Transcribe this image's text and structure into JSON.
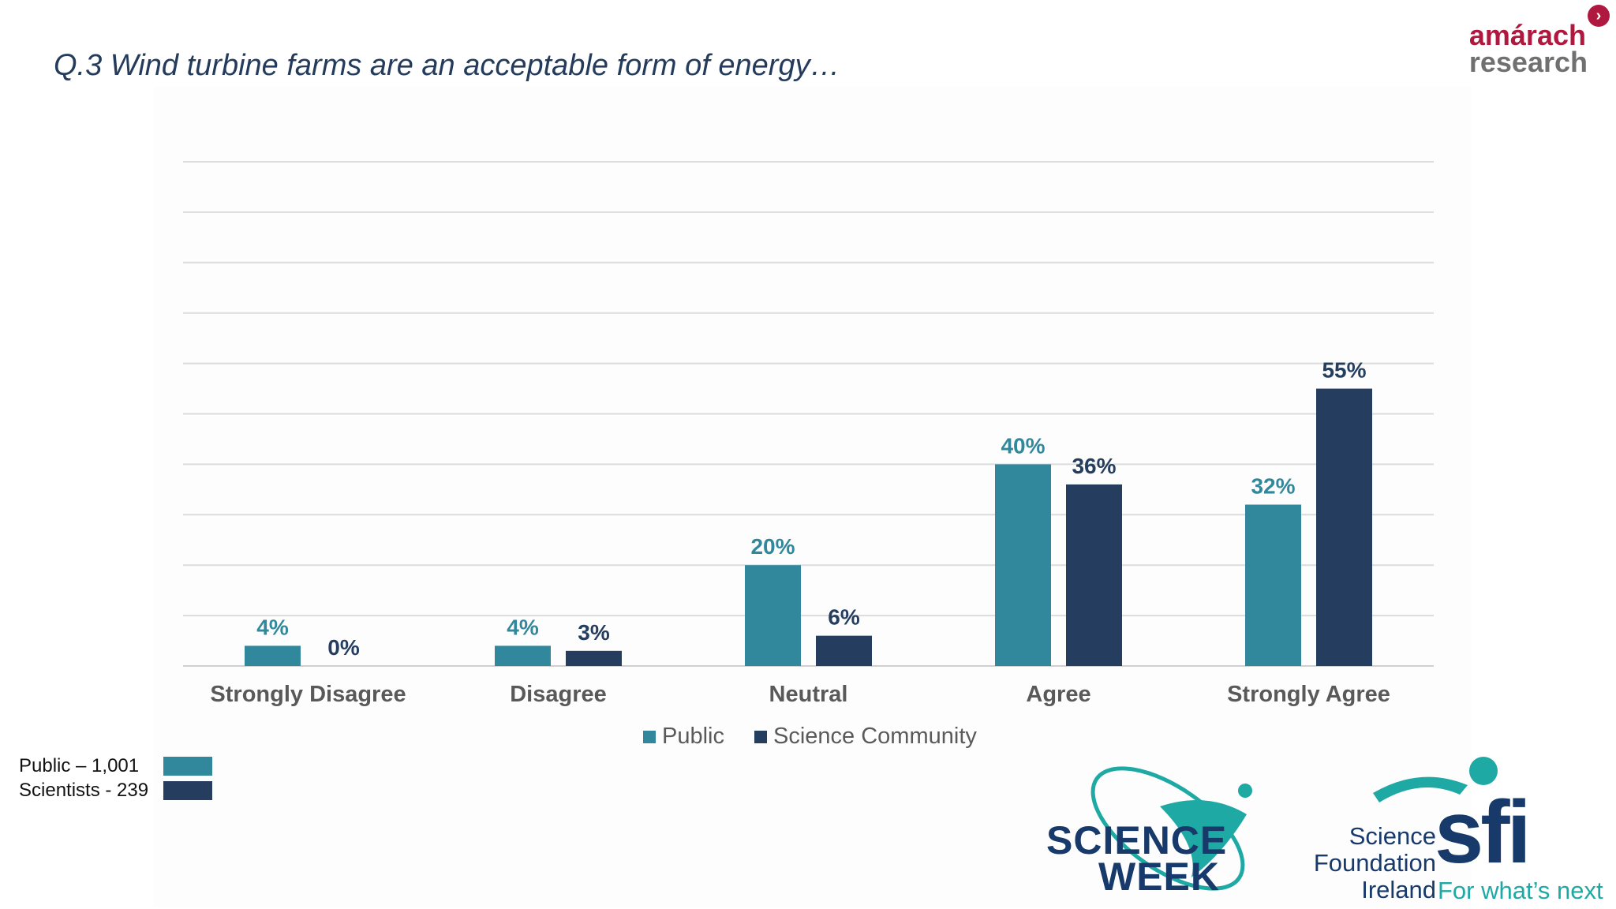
{
  "title": "Q.3 Wind turbine farms are an acceptable form of energy…",
  "colors": {
    "public": "#31879c",
    "science": "#253d5e",
    "grid": "#dcdcdc"
  },
  "chart_data": {
    "type": "bar",
    "title": "",
    "xlabel": "",
    "ylabel": "",
    "ylim": [
      0,
      100
    ],
    "grid": true,
    "legend": "bottom-center",
    "categories": [
      "Strongly Disagree",
      "Disagree",
      "Neutral",
      "Agree",
      "Strongly Agree"
    ],
    "series": [
      {
        "name": "Public",
        "values": [
          4,
          4,
          20,
          40,
          32
        ],
        "labels": [
          "4%",
          "4%",
          "20%",
          "40%",
          "32%"
        ]
      },
      {
        "name": "Science Community",
        "values": [
          0,
          3,
          6,
          36,
          55
        ],
        "labels": [
          "0%",
          "3%",
          "6%",
          "36%",
          "55%"
        ]
      }
    ]
  },
  "legend": {
    "public": "Public",
    "science": "Science Community"
  },
  "base": {
    "public": "Public – 1,001",
    "science": "Scientists - 239"
  },
  "logos": {
    "amarach_top": "amárach",
    "amarach_bottom": "research",
    "science_week_1": "SCIENCE",
    "science_week_2": "WEEK",
    "sfi_line1": "Science",
    "sfi_line2": "Foundation",
    "sfi_line3": "Ireland",
    "sfi_mark": "sfi",
    "sfi_tagline": "For what’s next"
  }
}
